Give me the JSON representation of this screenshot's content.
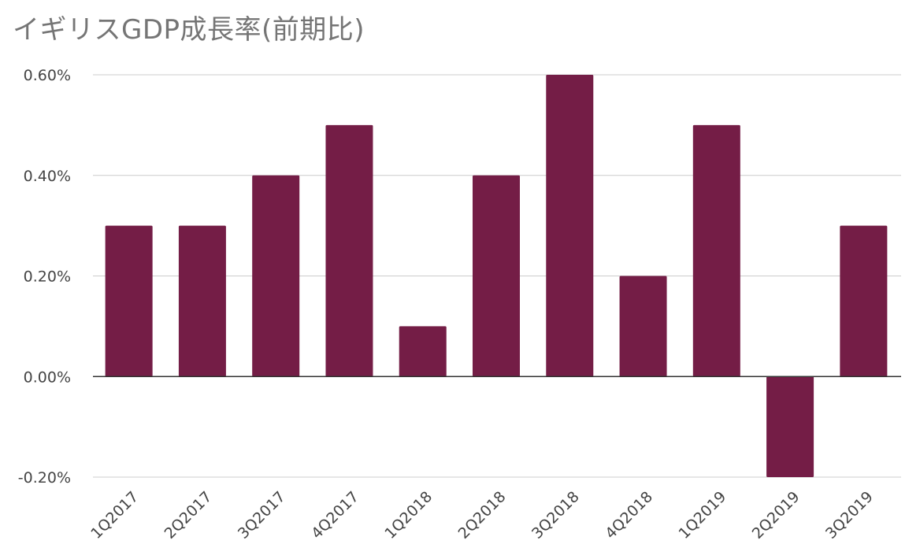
{
  "chart_data": {
    "type": "bar",
    "title": "イギリスGDP成長率(前期比)",
    "xlabel": "",
    "ylabel": "",
    "categories": [
      "1Q2017",
      "2Q2017",
      "3Q2017",
      "4Q2017",
      "1Q2018",
      "2Q2018",
      "3Q2018",
      "4Q2018",
      "1Q2019",
      "2Q2019",
      "3Q2019"
    ],
    "values": [
      0.3,
      0.3,
      0.4,
      0.5,
      0.1,
      0.4,
      0.6,
      0.2,
      0.5,
      -0.2,
      0.3
    ],
    "ylim": [
      -0.2,
      0.6
    ],
    "yticks": [
      0.6,
      0.4,
      0.2,
      0.0,
      -0.2
    ],
    "ytick_labels": [
      "0.60%",
      "0.40%",
      "0.20%",
      "0.00%",
      "-0.20%"
    ],
    "grid": true,
    "legend": "none",
    "bar_color": "#741d46"
  }
}
